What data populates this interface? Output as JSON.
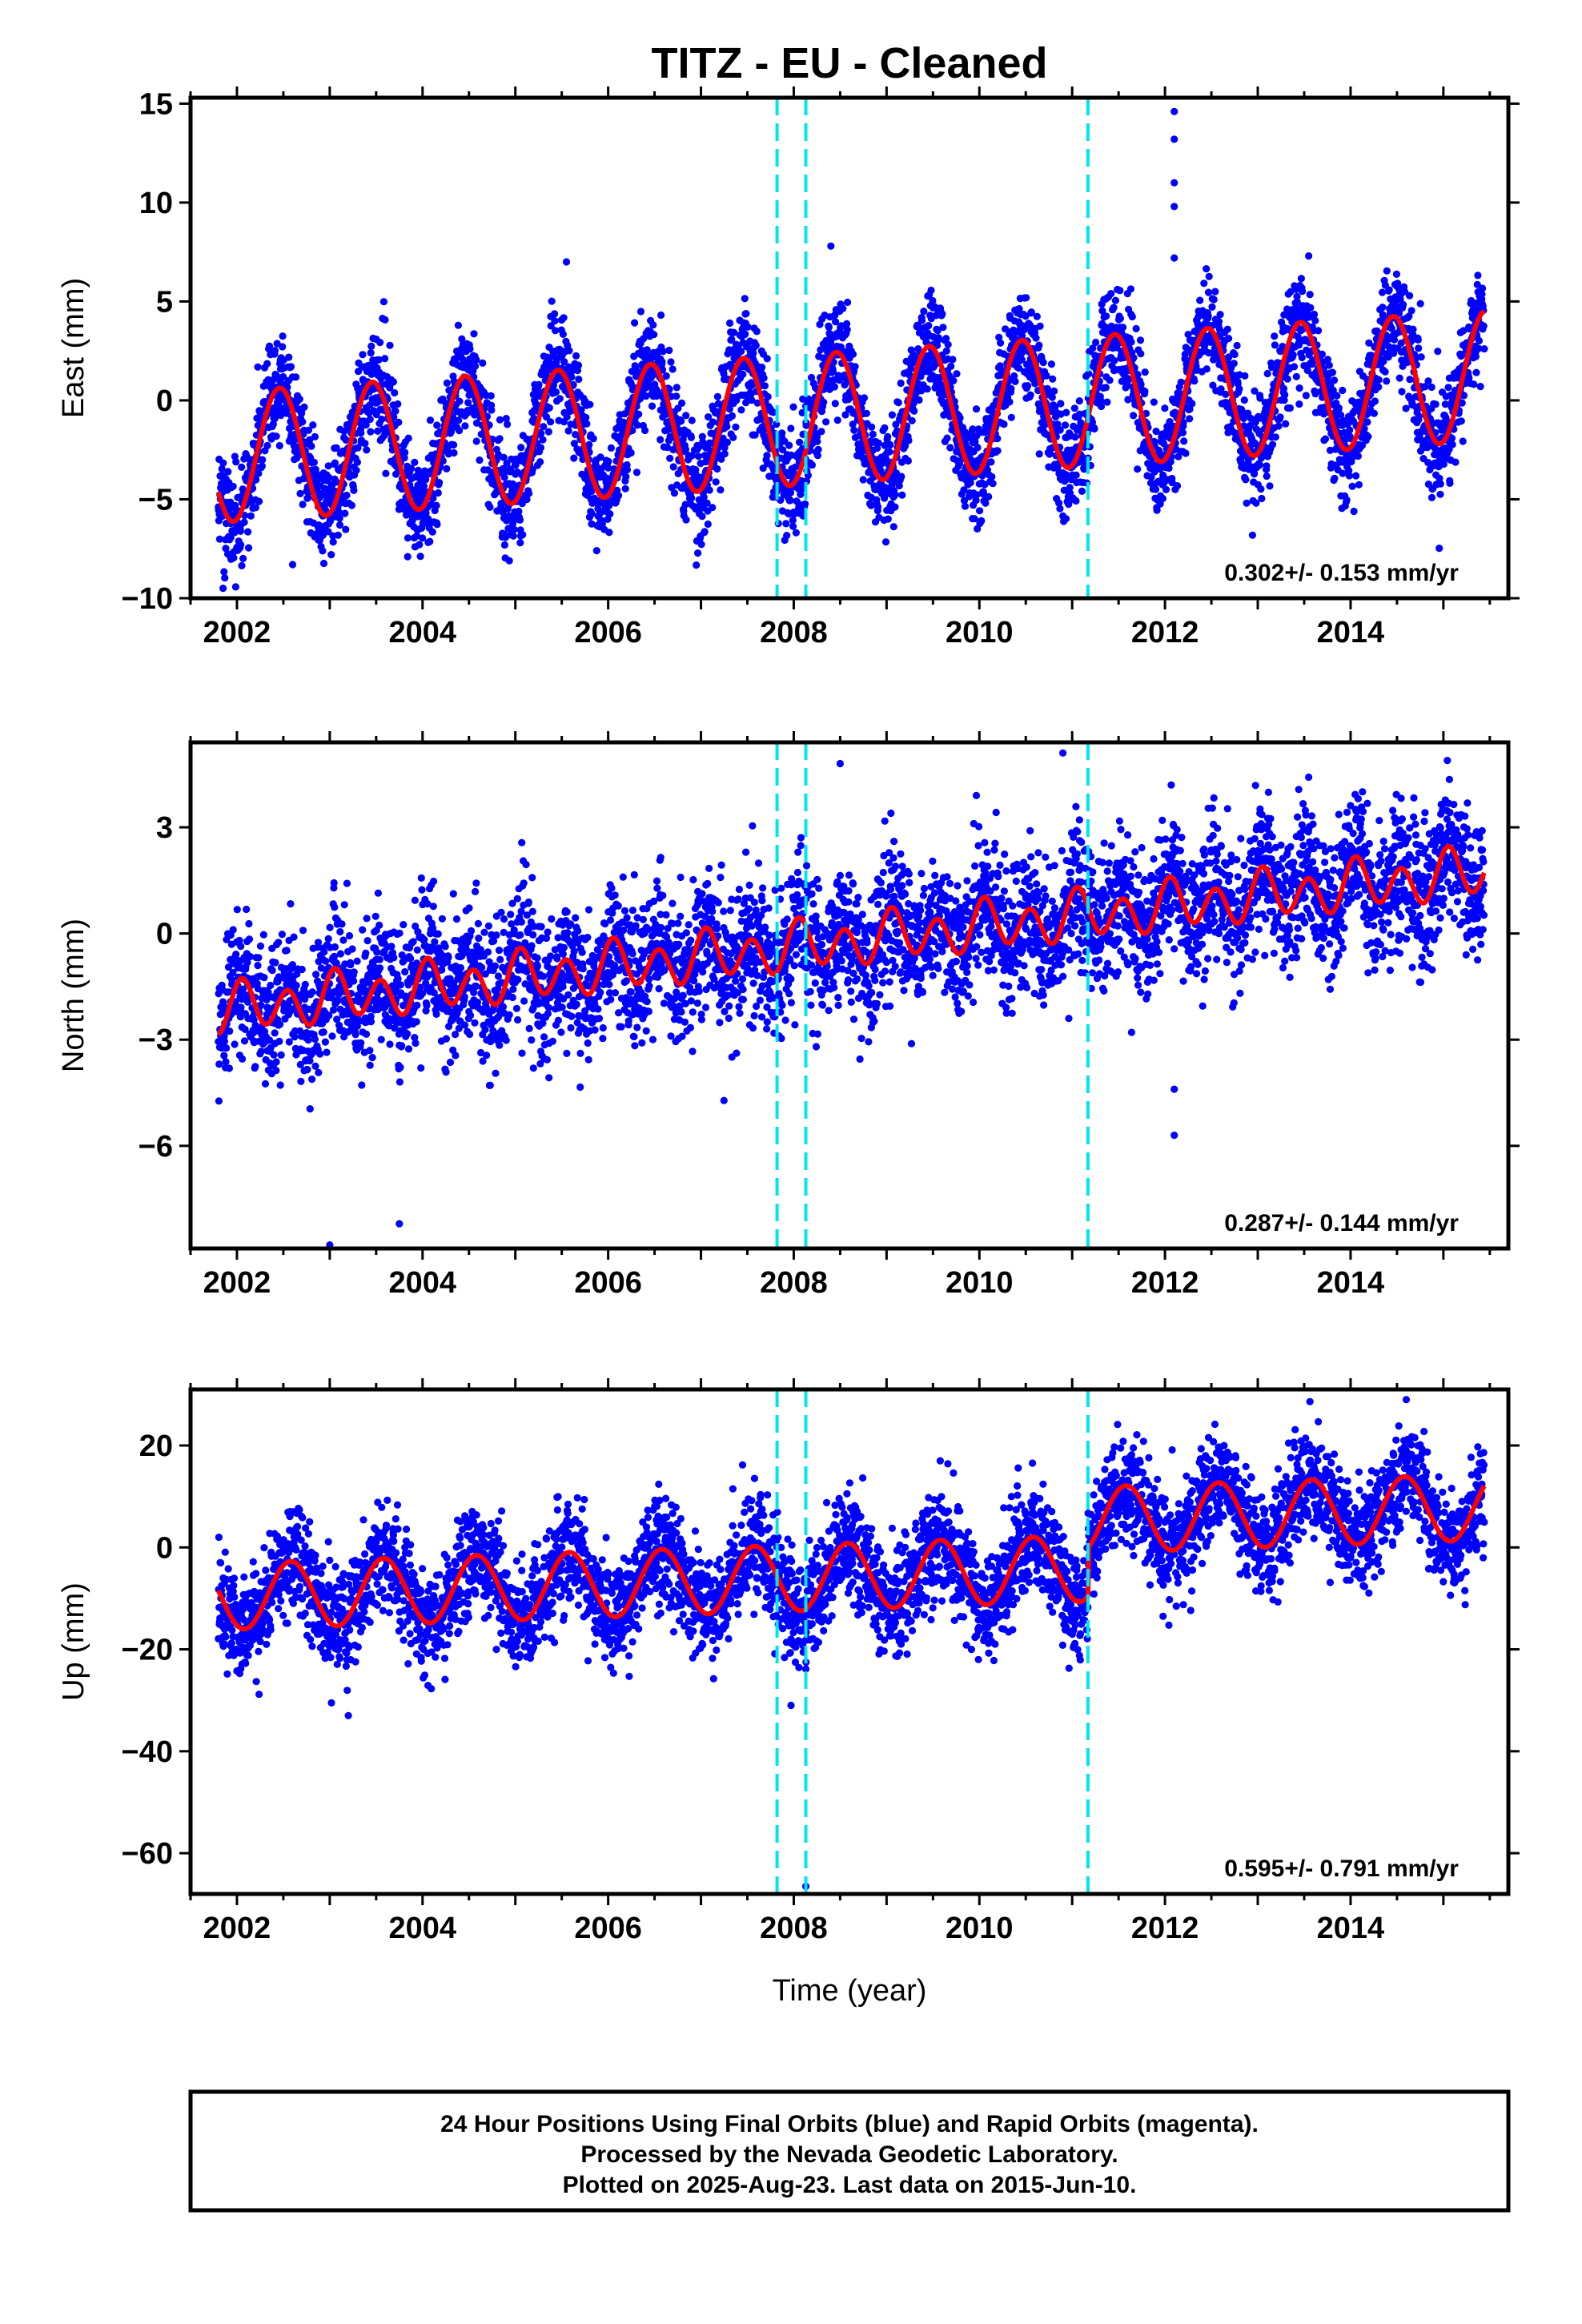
{
  "title": "TITZ  - EU - Cleaned",
  "xlabel": "Time (year)",
  "footer": [
    "24 Hour Positions Using Final Orbits (blue) and Rapid Orbits (magenta).",
    "Processed by the Nevada Geodetic Laboratory.",
    "Plotted on 2025-Aug-23. Last data on 2015-Jun-10."
  ],
  "colors": {
    "data": "#0000ff",
    "model": "#ff0000",
    "steps": "#00e5ee",
    "axes": "#000000"
  },
  "chart_data": [
    {
      "type": "scatter",
      "ylabel": "East (mm)",
      "rate_text": "0.302+/- 0.153 mm/yr",
      "xlim": [
        2001.5,
        2015.7
      ],
      "ylim": [
        -10,
        15.3
      ],
      "xticks": [
        "2002",
        "2004",
        "2006",
        "2008",
        "2010",
        "2012",
        "2014"
      ],
      "yticks": [
        "15",
        "10",
        "5",
        "0",
        "−5",
        "−10"
      ],
      "ytick_values": [
        15,
        10,
        5,
        0,
        -5,
        -10
      ],
      "x_start": 2001.8,
      "x_end": 2015.44,
      "step_times": [
        2007.82,
        2008.13,
        2011.17
      ],
      "model": {
        "offset": -1.0,
        "slope": 0.302,
        "t0": 2008.0,
        "annual_amp": 3.3,
        "annual_peak": 0.46,
        "semi_amp": 0.0,
        "semi_peak": 0.2,
        "steps": [
          0.0,
          0.0,
          0.0
        ]
      },
      "noise_sd": 1.35,
      "outliers": [
        [
          2012.1,
          14.6
        ],
        [
          2012.1,
          13.2
        ],
        [
          2012.1,
          11.0
        ],
        [
          2012.1,
          9.8
        ],
        [
          2012.1,
          7.2
        ],
        [
          2001.85,
          -9.5
        ],
        [
          2002.6,
          -8.3
        ],
        [
          2005.55,
          7.0
        ],
        [
          2008.4,
          7.8
        ]
      ]
    },
    {
      "type": "scatter",
      "ylabel": "North (mm)",
      "rate_text": "0.287+/- 0.144 mm/yr",
      "xlim": [
        2001.5,
        2015.7
      ],
      "ylim": [
        -8.9,
        5.4
      ],
      "xticks": [
        "2002",
        "2004",
        "2006",
        "2008",
        "2010",
        "2012",
        "2014"
      ],
      "yticks": [
        "3",
        "0",
        "−3",
        "−6"
      ],
      "ytick_values": [
        3,
        0,
        -3,
        -6
      ],
      "x_start": 2001.8,
      "x_end": 2015.44,
      "step_times": [
        2007.82,
        2008.13,
        2011.17
      ],
      "model": {
        "offset": -0.4,
        "slope": 0.287,
        "t0": 2008.0,
        "annual_amp": 0.25,
        "annual_peak": 0.1,
        "semi_amp": 0.6,
        "semi_peak": 0.05,
        "steps": [
          0.0,
          0.0,
          0.0
        ]
      },
      "noise_sd": 0.95,
      "outliers": [
        [
          2003.0,
          -8.8
        ],
        [
          2003.75,
          -8.2
        ],
        [
          2010.9,
          5.1
        ],
        [
          2012.1,
          -5.7
        ],
        [
          2012.1,
          -4.4
        ],
        [
          2008.5,
          4.8
        ]
      ]
    },
    {
      "type": "scatter",
      "ylabel": "Up (mm)",
      "rate_text": "0.595+/- 0.791 mm/yr",
      "xlim": [
        2001.5,
        2015.7
      ],
      "ylim": [
        -68,
        31
      ],
      "xticks": [
        "2002",
        "2004",
        "2006",
        "2008",
        "2010",
        "2012",
        "2014"
      ],
      "yticks": [
        "20",
        "0",
        "−20",
        "−40",
        "−60"
      ],
      "ytick_values": [
        20,
        0,
        -20,
        -40,
        -60
      ],
      "x_start": 2001.8,
      "x_end": 2015.44,
      "step_times": [
        2007.82,
        2008.13,
        2011.17
      ],
      "model": {
        "offset": -6.0,
        "slope": 0.595,
        "t0": 2008.0,
        "annual_amp": 6.5,
        "annual_peak": 0.58,
        "semi_amp": 0.0,
        "semi_peak": 0.2,
        "steps": [
          0.0,
          0.0,
          9.5
        ]
      },
      "noise_sd": 5.2,
      "outliers": [
        [
          2008.13,
          -66.5
        ],
        [
          2009.99,
          -22.0
        ],
        [
          2003.2,
          -33.0
        ],
        [
          2014.6,
          29.0
        ],
        [
          2007.97,
          -31.0
        ]
      ]
    }
  ]
}
